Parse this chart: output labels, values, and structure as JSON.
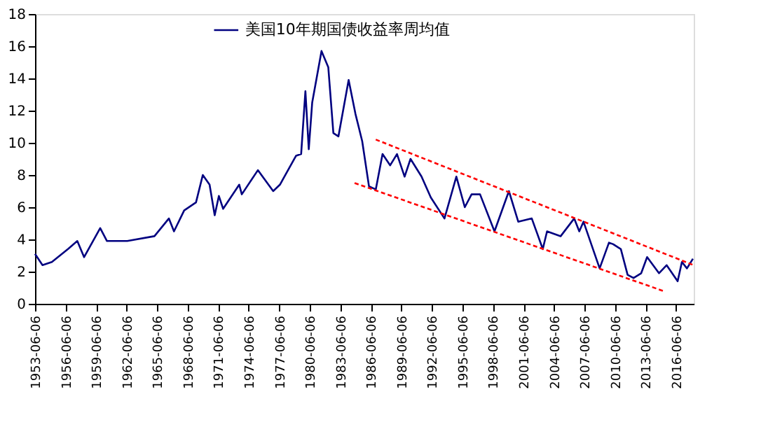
{
  "chart_data": {
    "type": "line",
    "legend": "top",
    "xlim": [
      "1953-06-06",
      "2018-03"
    ],
    "xticks": [
      "1953-06-06",
      "1956-06-06",
      "1959-06-06",
      "1962-06-06",
      "1965-06-06",
      "1968-06-06",
      "1971-06-06",
      "1974-06-06",
      "1977-06-06",
      "1980-06-06",
      "1983-06-06",
      "1986-06-06",
      "1989-06-06",
      "1992-06-06",
      "1995-06-06",
      "1998-06-06",
      "2001-06-06",
      "2004-06-06",
      "2007-06-06",
      "2010-06-06",
      "2013-06-06",
      "2016-06-06"
    ],
    "ylim": [
      0,
      18
    ],
    "yticks": [
      0,
      2,
      4,
      6,
      8,
      10,
      12,
      14,
      16,
      18
    ],
    "grid": false,
    "series": [
      {
        "name": "美国10年期国债收益率周均值",
        "color": "#000080",
        "line_style": "solid",
        "x": [
          "1953-06-06",
          "1954-03",
          "1955-02",
          "1956-09",
          "1957-08",
          "1958-04",
          "1959-11",
          "1960-07",
          "1962-07",
          "1965-03",
          "1966-08",
          "1967-02",
          "1968-02",
          "1969-04",
          "1969-12",
          "1970-08",
          "1971-02",
          "1971-07",
          "1971-12",
          "1973-07",
          "1973-10",
          "1975-05",
          "1976-11",
          "1977-07",
          "1979-02",
          "1979-08",
          "1980-01",
          "1980-05",
          "1980-09",
          "1981-08",
          "1982-04",
          "1982-10",
          "1983-04",
          "1984-04",
          "1984-12",
          "1985-08",
          "1986-04",
          "1986-12",
          "1987-08",
          "1988-05",
          "1989-01",
          "1989-10",
          "1990-05",
          "1991-06",
          "1992-05",
          "1993-09",
          "1994-11",
          "1995-09",
          "1996-05",
          "1997-03",
          "1998-08",
          "2000-01",
          "2000-12",
          "2002-04",
          "2003-05",
          "2003-10",
          "2005-02",
          "2006-06",
          "2006-12",
          "2007-05",
          "2008-12",
          "2009-11",
          "2010-04",
          "2011-01",
          "2011-09",
          "2012-04",
          "2013-01",
          "2013-08",
          "2014-10",
          "2015-07",
          "2016-08",
          "2017-01",
          "2017-07",
          "2018-02"
        ],
        "values": [
          3.1,
          2.4,
          2.6,
          3.4,
          3.9,
          2.9,
          4.7,
          3.9,
          3.9,
          4.2,
          5.3,
          4.5,
          5.8,
          6.3,
          8.0,
          7.4,
          5.5,
          6.7,
          5.9,
          7.4,
          6.8,
          8.3,
          7.0,
          7.4,
          9.2,
          9.3,
          13.2,
          9.6,
          12.5,
          15.7,
          14.7,
          10.6,
          10.4,
          13.9,
          11.8,
          10.1,
          7.3,
          7.1,
          9.3,
          8.6,
          9.3,
          7.9,
          9.0,
          7.9,
          6.6,
          5.3,
          7.9,
          6.0,
          6.8,
          6.8,
          4.5,
          7.0,
          5.1,
          5.3,
          3.4,
          4.5,
          4.2,
          5.3,
          4.5,
          5.1,
          2.2,
          3.8,
          3.7,
          3.4,
          1.8,
          1.6,
          1.9,
          2.9,
          1.9,
          2.4,
          1.4,
          2.6,
          2.2,
          2.8
        ]
      },
      {
        "type": "line",
        "color": "#ff0000",
        "line_style": "dashed",
        "x": [
          "1986-12",
          "2018-03"
        ],
        "values": [
          10.2,
          2.4
        ]
      },
      {
        "type": "line",
        "color": "#ff0000",
        "line_style": "dashed",
        "x": [
          "1984-11",
          "2015-03"
        ],
        "values": [
          7.5,
          0.8
        ]
      }
    ]
  }
}
